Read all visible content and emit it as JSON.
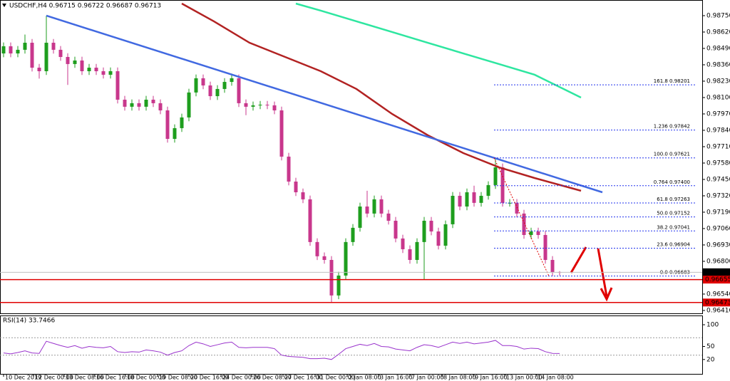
{
  "chart_data": [
    {
      "type": "candlestick",
      "title": "USDCHF,H4  0.96715 0.96722 0.96687 0.96713",
      "up_color": "#1e9e1e",
      "down_color": "#c8378c",
      "open": [
        0.9845,
        0.98507,
        0.9845,
        0.98479,
        0.98535,
        0.98337,
        0.98309,
        0.98535,
        0.98479,
        0.98422,
        0.98366,
        0.98394,
        0.98309,
        0.98337,
        0.98309,
        0.98281,
        0.98309,
        0.98083,
        0.98027,
        0.98055,
        0.98027,
        0.98083,
        0.98055,
        0.97998,
        0.97772,
        0.97857,
        0.97942,
        0.9814,
        0.98253,
        0.98196,
        0.98111,
        0.98168,
        0.98224,
        0.98253,
        0.98055,
        0.98027,
        0.98038,
        0.98043,
        0.98038,
        0.97998,
        0.97631,
        0.97433,
        0.97348,
        0.97292,
        0.96953,
        0.9684,
        0.96811,
        0.96529,
        0.96687,
        0.96953,
        0.97066,
        0.97235,
        0.97179,
        0.97292,
        0.97179,
        0.97122,
        0.96981,
        0.96896,
        0.96811,
        0.96953,
        0.97122,
        0.97037,
        0.96924,
        0.97094,
        0.9732,
        0.97235,
        0.97348,
        0.97264,
        0.9732,
        0.97405,
        0.97546,
        0.97264,
        0.97264,
        0.97179,
        0.97009,
        0.97037,
        0.97009,
        0.96811,
        0.96715
      ],
      "high": [
        0.98537,
        0.98537,
        0.98509,
        0.986,
        0.98565,
        0.98367,
        0.9875,
        0.98565,
        0.98509,
        0.98452,
        0.98424,
        0.98424,
        0.98367,
        0.98367,
        0.98339,
        0.98339,
        0.98339,
        0.98113,
        0.98085,
        0.98085,
        0.98113,
        0.98113,
        0.98085,
        0.98028,
        0.97887,
        0.97972,
        0.9817,
        0.98283,
        0.98283,
        0.98226,
        0.98198,
        0.98254,
        0.9829,
        0.98283,
        0.98085,
        0.98068,
        0.98073,
        0.98073,
        0.98068,
        0.98028,
        0.97661,
        0.97463,
        0.97378,
        0.97322,
        0.96983,
        0.9687,
        0.96841,
        0.96717,
        0.96983,
        0.97096,
        0.97265,
        0.9736,
        0.97322,
        0.97322,
        0.97209,
        0.97152,
        0.97011,
        0.96926,
        0.96983,
        0.97152,
        0.97152,
        0.97067,
        0.97124,
        0.9735,
        0.9735,
        0.97378,
        0.974,
        0.9735,
        0.97435,
        0.97621,
        0.97576,
        0.97294,
        0.97294,
        0.97209,
        0.97067,
        0.97067,
        0.97039,
        0.96841,
        0.96722
      ],
      "low": [
        0.9842,
        0.9842,
        0.9842,
        0.98449,
        0.98307,
        0.9825,
        0.98279,
        0.98449,
        0.98392,
        0.982,
        0.98336,
        0.98279,
        0.98279,
        0.98279,
        0.98251,
        0.98251,
        0.98053,
        0.97997,
        0.97997,
        0.97997,
        0.97997,
        0.98025,
        0.97968,
        0.97742,
        0.97742,
        0.97827,
        0.97912,
        0.9811,
        0.98166,
        0.98081,
        0.98081,
        0.98138,
        0.98194,
        0.98025,
        0.9796,
        0.97997,
        0.98008,
        0.98008,
        0.97968,
        0.97601,
        0.97403,
        0.97318,
        0.97262,
        0.96923,
        0.9681,
        0.96781,
        0.96473,
        0.96499,
        0.96657,
        0.96923,
        0.97036,
        0.97149,
        0.97149,
        0.97149,
        0.97092,
        0.96951,
        0.96866,
        0.96781,
        0.96781,
        0.96655,
        0.97007,
        0.96894,
        0.96894,
        0.97064,
        0.97205,
        0.97205,
        0.97234,
        0.97234,
        0.9729,
        0.97375,
        0.97234,
        0.97234,
        0.97149,
        0.96979,
        0.96979,
        0.96979,
        0.96781,
        0.96683,
        0.96687
      ],
      "close": [
        0.98507,
        0.9845,
        0.98479,
        0.98535,
        0.98337,
        0.98309,
        0.98535,
        0.98479,
        0.98422,
        0.98366,
        0.98394,
        0.98309,
        0.98337,
        0.98309,
        0.98281,
        0.98309,
        0.98083,
        0.98027,
        0.98055,
        0.98027,
        0.98083,
        0.98055,
        0.97998,
        0.97772,
        0.97857,
        0.97942,
        0.9814,
        0.98253,
        0.98196,
        0.98111,
        0.98168,
        0.98224,
        0.98253,
        0.98055,
        0.98027,
        0.98038,
        0.98043,
        0.98038,
        0.97998,
        0.97631,
        0.97433,
        0.97348,
        0.97292,
        0.96953,
        0.9684,
        0.96811,
        0.96529,
        0.96687,
        0.96953,
        0.97066,
        0.97235,
        0.97179,
        0.97292,
        0.97179,
        0.97122,
        0.96981,
        0.96896,
        0.96811,
        0.96953,
        0.97122,
        0.97037,
        0.96924,
        0.97094,
        0.9732,
        0.97235,
        0.97348,
        0.97264,
        0.9732,
        0.97405,
        0.97546,
        0.97264,
        0.97264,
        0.97179,
        0.97009,
        0.97037,
        0.97009,
        0.96811,
        0.96715,
        0.96713
      ],
      "xlim": [
        -0.5,
        98
      ],
      "ylim": [
        0.96387,
        0.98846
      ],
      "yticks": [
        {
          "value": 0.9875,
          "label": "0.98750"
        },
        {
          "value": 0.9862,
          "label": "0.98620"
        },
        {
          "value": 0.9849,
          "label": "0.98490"
        },
        {
          "value": 0.9836,
          "label": "0.98360"
        },
        {
          "value": 0.9823,
          "label": "0.98230"
        },
        {
          "value": 0.981,
          "label": "0.98100"
        },
        {
          "value": 0.9797,
          "label": "0.97970"
        },
        {
          "value": 0.9784,
          "label": "0.97840"
        },
        {
          "value": 0.9771,
          "label": "0.97710"
        },
        {
          "value": 0.9758,
          "label": "0.97580"
        },
        {
          "value": 0.9745,
          "label": "0.97450"
        },
        {
          "value": 0.9732,
          "label": "0.97320"
        },
        {
          "value": 0.9719,
          "label": "0.97190"
        },
        {
          "value": 0.9706,
          "label": "0.97060"
        },
        {
          "value": 0.9693,
          "label": "0.96930"
        },
        {
          "value": 0.968,
          "label": "0.96800"
        },
        {
          "value": 0.9654,
          "label": "0.96540"
        },
        {
          "value": 0.9641,
          "label": "0.96410"
        }
      ],
      "xticks": [
        {
          "value": 0,
          "label": "10 Dec 2019"
        },
        {
          "value": 4.2,
          "label": "12 Dec 00:00"
        },
        {
          "value": 8.5,
          "label": "13 Dec 08:00"
        },
        {
          "value": 12.8,
          "label": "16 Dec 16:00"
        },
        {
          "value": 17.1,
          "label": "18 Dec 00:00"
        },
        {
          "value": 21.6,
          "label": "19 Dec 08:00"
        },
        {
          "value": 26,
          "label": "20 Dec 16:00"
        },
        {
          "value": 30.5,
          "label": "24 Dec 00:00"
        },
        {
          "value": 34.8,
          "label": "26 Dec 08:00"
        },
        {
          "value": 39.2,
          "label": "27 Dec 16:00"
        },
        {
          "value": 43.7,
          "label": "31 Dec 00:00"
        },
        {
          "value": 48.2,
          "label": "2 Jan 08:00"
        },
        {
          "value": 52.6,
          "label": "3 Jan 16:00"
        },
        {
          "value": 57,
          "label": "7 Jan 00:00"
        },
        {
          "value": 61.5,
          "label": "8 Jan 08:00"
        },
        {
          "value": 65.9,
          "label": "9 Jan 16:00"
        },
        {
          "value": 70.3,
          "label": "13 Jan 00:00"
        },
        {
          "value": 74.7,
          "label": "14 Jan 08:00"
        }
      ],
      "lines": [
        {
          "color": "#b22222",
          "x": [
            25,
            29.5,
            34.5,
            39.5,
            44.5,
            49.5,
            54.5,
            59.5,
            64.5,
            69.5,
            74.5,
            81
          ],
          "values": [
            0.98846,
            0.98705,
            0.98535,
            0.98422,
            0.98309,
            0.98168,
            0.9797,
            0.97801,
            0.97659,
            0.97546,
            0.97461,
            0.9736
          ]
        },
        {
          "color": "#2ee6a0",
          "x": [
            41,
            44.5,
            49.5,
            54.5,
            59.5,
            64.5,
            69.5,
            74.5,
            81
          ],
          "values": [
            0.98846,
            0.9879,
            0.98705,
            0.9862,
            0.98535,
            0.9845,
            0.98366,
            0.98281,
            0.981
          ]
        },
        {
          "color": "#4169e1",
          "x": [
            6,
            84
          ],
          "values": [
            0.9875,
            0.97348
          ]
        }
      ],
      "hlines": [
        {
          "value": 0.96655,
          "color": "#e00000"
        },
        {
          "value": 0.96473,
          "color": "#e00000"
        }
      ],
      "current_price": 0.96713,
      "fibonacci": {
        "color": "#2233ee",
        "x": [
          68.8,
          76.5
        ],
        "levels": [
          {
            "value": 0.98201,
            "label": "161.8 0.98201"
          },
          {
            "value": 0.97842,
            "label": "1.236 0.97842"
          },
          {
            "value": 0.97621,
            "label": "100.0 0.97621"
          },
          {
            "value": 0.974,
            "label": "0.764 0.97400"
          },
          {
            "value": 0.97263,
            "label": "61.8 0.97263"
          },
          {
            "value": 0.97152,
            "label": "50.0 0.97152"
          },
          {
            "value": 0.97041,
            "label": "38.2 0.97041"
          },
          {
            "value": 0.96904,
            "label": "23.6 0.96904"
          },
          {
            "value": 0.96683,
            "label": "0.0 0.96683"
          }
        ]
      }
    },
    {
      "type": "line",
      "title": "RSI(14) 33.7466",
      "color": "#9932cc",
      "values": [
        35,
        33,
        36,
        40,
        35,
        34,
        62,
        57,
        52,
        48,
        52,
        46,
        50,
        48,
        47,
        50,
        38,
        36,
        38,
        37,
        42,
        40,
        37,
        30,
        36,
        40,
        52,
        60,
        56,
        50,
        54,
        58,
        60,
        48,
        47,
        48,
        48,
        48,
        45,
        30,
        27,
        26,
        25,
        22,
        22,
        23,
        20,
        32,
        45,
        50,
        55,
        52,
        57,
        50,
        49,
        44,
        42,
        40,
        48,
        54,
        52,
        48,
        54,
        60,
        57,
        60,
        56,
        58,
        60,
        64,
        52,
        52,
        50,
        44,
        46,
        45,
        38,
        34,
        33.7466
      ],
      "ylim": [
        0,
        100
      ],
      "yticks": [
        100,
        50,
        20
      ],
      "levels": [
        70,
        30
      ]
    }
  ]
}
